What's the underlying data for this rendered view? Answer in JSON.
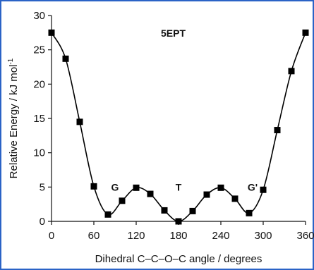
{
  "chart_data": {
    "type": "scatter",
    "title": "5EPT",
    "xlabel": "Dihedral C–C–O–C angle / degrees",
    "ylabel": "Relative Energy / kJ mol",
    "ylabel_sup": "-1",
    "xlim": [
      0,
      360
    ],
    "ylim": [
      0,
      30
    ],
    "xticks": [
      0,
      60,
      120,
      180,
      240,
      300,
      360
    ],
    "yticks": [
      0,
      5,
      10,
      15,
      20,
      25,
      30
    ],
    "grid": false,
    "marker": "square",
    "smooth_line": true,
    "x": [
      0,
      20,
      40,
      60,
      80,
      100,
      120,
      140,
      160,
      180,
      200,
      220,
      240,
      260,
      280,
      300,
      320,
      340,
      360
    ],
    "y": [
      27.5,
      23.7,
      14.5,
      5.1,
      1.0,
      3.0,
      4.9,
      4.0,
      1.6,
      0.0,
      1.5,
      3.9,
      4.9,
      3.3,
      1.2,
      4.6,
      13.3,
      21.9,
      27.5
    ],
    "annotations": [
      {
        "text": "G",
        "x": 90,
        "y": 5
      },
      {
        "text": "T",
        "x": 180,
        "y": 5
      },
      {
        "text": "G'",
        "x": 285,
        "y": 5
      }
    ]
  }
}
